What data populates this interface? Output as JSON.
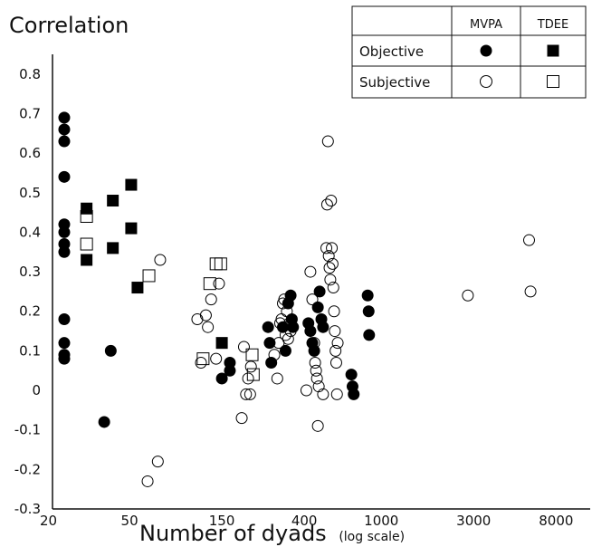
{
  "chart_data": {
    "type": "scatter",
    "title": "Correlation",
    "xlabel": "Number of dyads",
    "xlabel_note": "(log scale)",
    "x_scale": "log",
    "xlim": [
      20,
      12000
    ],
    "ylim": [
      -0.3,
      0.85
    ],
    "x_ticks": [
      20,
      50,
      150,
      400,
      1000,
      3000,
      8000
    ],
    "x_tick_labels": [
      "20",
      "50",
      "150",
      "400",
      "1000",
      "3000",
      "8000"
    ],
    "y_ticks": [
      -0.3,
      -0.2,
      -0.1,
      0,
      0.1,
      0.2,
      0.3,
      0.4,
      0.5,
      0.6,
      0.7,
      0.8
    ],
    "y_tick_labels": [
      "-0.3",
      "-0.2",
      "-0.1",
      "0",
      "0.1",
      "0.2",
      "0.3",
      "0.4",
      "0.5",
      "0.6",
      "0.7",
      "0.8"
    ],
    "grid": false,
    "legend": {
      "placement": "top-right",
      "col_headers": [
        "MVPA",
        "TDEE"
      ],
      "row_headers": [
        "Objective",
        "Subjective"
      ]
    },
    "series": [
      {
        "name": "Objective MVPA",
        "marker": "filled-circle",
        "points": [
          [
            23,
            0.69
          ],
          [
            23,
            0.66
          ],
          [
            23,
            0.63
          ],
          [
            23,
            0.54
          ],
          [
            23,
            0.42
          ],
          [
            23,
            0.4
          ],
          [
            23,
            0.37
          ],
          [
            23,
            0.35
          ],
          [
            23,
            0.18
          ],
          [
            23,
            0.12
          ],
          [
            23,
            0.09
          ],
          [
            23,
            0.08
          ],
          [
            37,
            -0.08
          ],
          [
            40,
            0.1
          ],
          [
            150,
            0.03
          ],
          [
            165,
            0.07
          ],
          [
            165,
            0.05
          ],
          [
            260,
            0.16
          ],
          [
            265,
            0.12
          ],
          [
            270,
            0.07
          ],
          [
            310,
            0.16
          ],
          [
            320,
            0.1
          ],
          [
            330,
            0.22
          ],
          [
            340,
            0.24
          ],
          [
            345,
            0.18
          ],
          [
            350,
            0.16
          ],
          [
            420,
            0.17
          ],
          [
            430,
            0.15
          ],
          [
            440,
            0.12
          ],
          [
            450,
            0.1
          ],
          [
            470,
            0.21
          ],
          [
            480,
            0.25
          ],
          [
            490,
            0.18
          ],
          [
            500,
            0.16
          ],
          [
            700,
            0.04
          ],
          [
            710,
            0.01
          ],
          [
            720,
            -0.01
          ],
          [
            850,
            0.24
          ],
          [
            860,
            0.2
          ],
          [
            865,
            0.14
          ]
        ]
      },
      {
        "name": "Objective TDEE",
        "marker": "filled-square",
        "points": [
          [
            30,
            0.46
          ],
          [
            30,
            0.33
          ],
          [
            41,
            0.48
          ],
          [
            41,
            0.36
          ],
          [
            51,
            0.52
          ],
          [
            51,
            0.41
          ],
          [
            55,
            0.26
          ],
          [
            150,
            0.12
          ]
        ]
      },
      {
        "name": "Subjective MVPA",
        "marker": "open-circle",
        "points": [
          [
            62,
            -0.23
          ],
          [
            70,
            -0.18
          ],
          [
            72,
            0.33
          ],
          [
            112,
            0.18
          ],
          [
            117,
            0.07
          ],
          [
            124,
            0.19
          ],
          [
            127,
            0.16
          ],
          [
            132,
            0.23
          ],
          [
            140,
            0.08
          ],
          [
            145,
            0.27
          ],
          [
            190,
            -0.07
          ],
          [
            195,
            0.11
          ],
          [
            200,
            -0.01
          ],
          [
            205,
            0.03
          ],
          [
            210,
            -0.01
          ],
          [
            212,
            0.06
          ],
          [
            280,
            0.09
          ],
          [
            290,
            0.03
          ],
          [
            295,
            0.12
          ],
          [
            300,
            0.17
          ],
          [
            305,
            0.18
          ],
          [
            310,
            0.22
          ],
          [
            315,
            0.23
          ],
          [
            320,
            0.14
          ],
          [
            325,
            0.2
          ],
          [
            330,
            0.13
          ],
          [
            335,
            0.17
          ],
          [
            340,
            0.15
          ],
          [
            410,
            0.0
          ],
          [
            430,
            0.3
          ],
          [
            440,
            0.23
          ],
          [
            450,
            0.12
          ],
          [
            455,
            0.07
          ],
          [
            460,
            0.05
          ],
          [
            465,
            0.03
          ],
          [
            470,
            -0.09
          ],
          [
            475,
            0.01
          ],
          [
            500,
            -0.01
          ],
          [
            520,
            0.36
          ],
          [
            525,
            0.47
          ],
          [
            530,
            0.63
          ],
          [
            535,
            0.34
          ],
          [
            540,
            0.31
          ],
          [
            545,
            0.28
          ],
          [
            550,
            0.48
          ],
          [
            555,
            0.36
          ],
          [
            560,
            0.32
          ],
          [
            565,
            0.26
          ],
          [
            570,
            0.2
          ],
          [
            575,
            0.15
          ],
          [
            580,
            0.1
          ],
          [
            585,
            0.07
          ],
          [
            590,
            -0.01
          ],
          [
            595,
            0.12
          ],
          [
            2800,
            0.24
          ],
          [
            5800,
            0.38
          ],
          [
            5900,
            0.25
          ]
        ]
      },
      {
        "name": "Subjective TDEE",
        "marker": "open-square",
        "points": [
          [
            30,
            0.44
          ],
          [
            30,
            0.37
          ],
          [
            63,
            0.29
          ],
          [
            120,
            0.08
          ],
          [
            130,
            0.27
          ],
          [
            140,
            0.32
          ],
          [
            148,
            0.32
          ],
          [
            215,
            0.09
          ],
          [
            218,
            0.04
          ]
        ]
      }
    ]
  }
}
